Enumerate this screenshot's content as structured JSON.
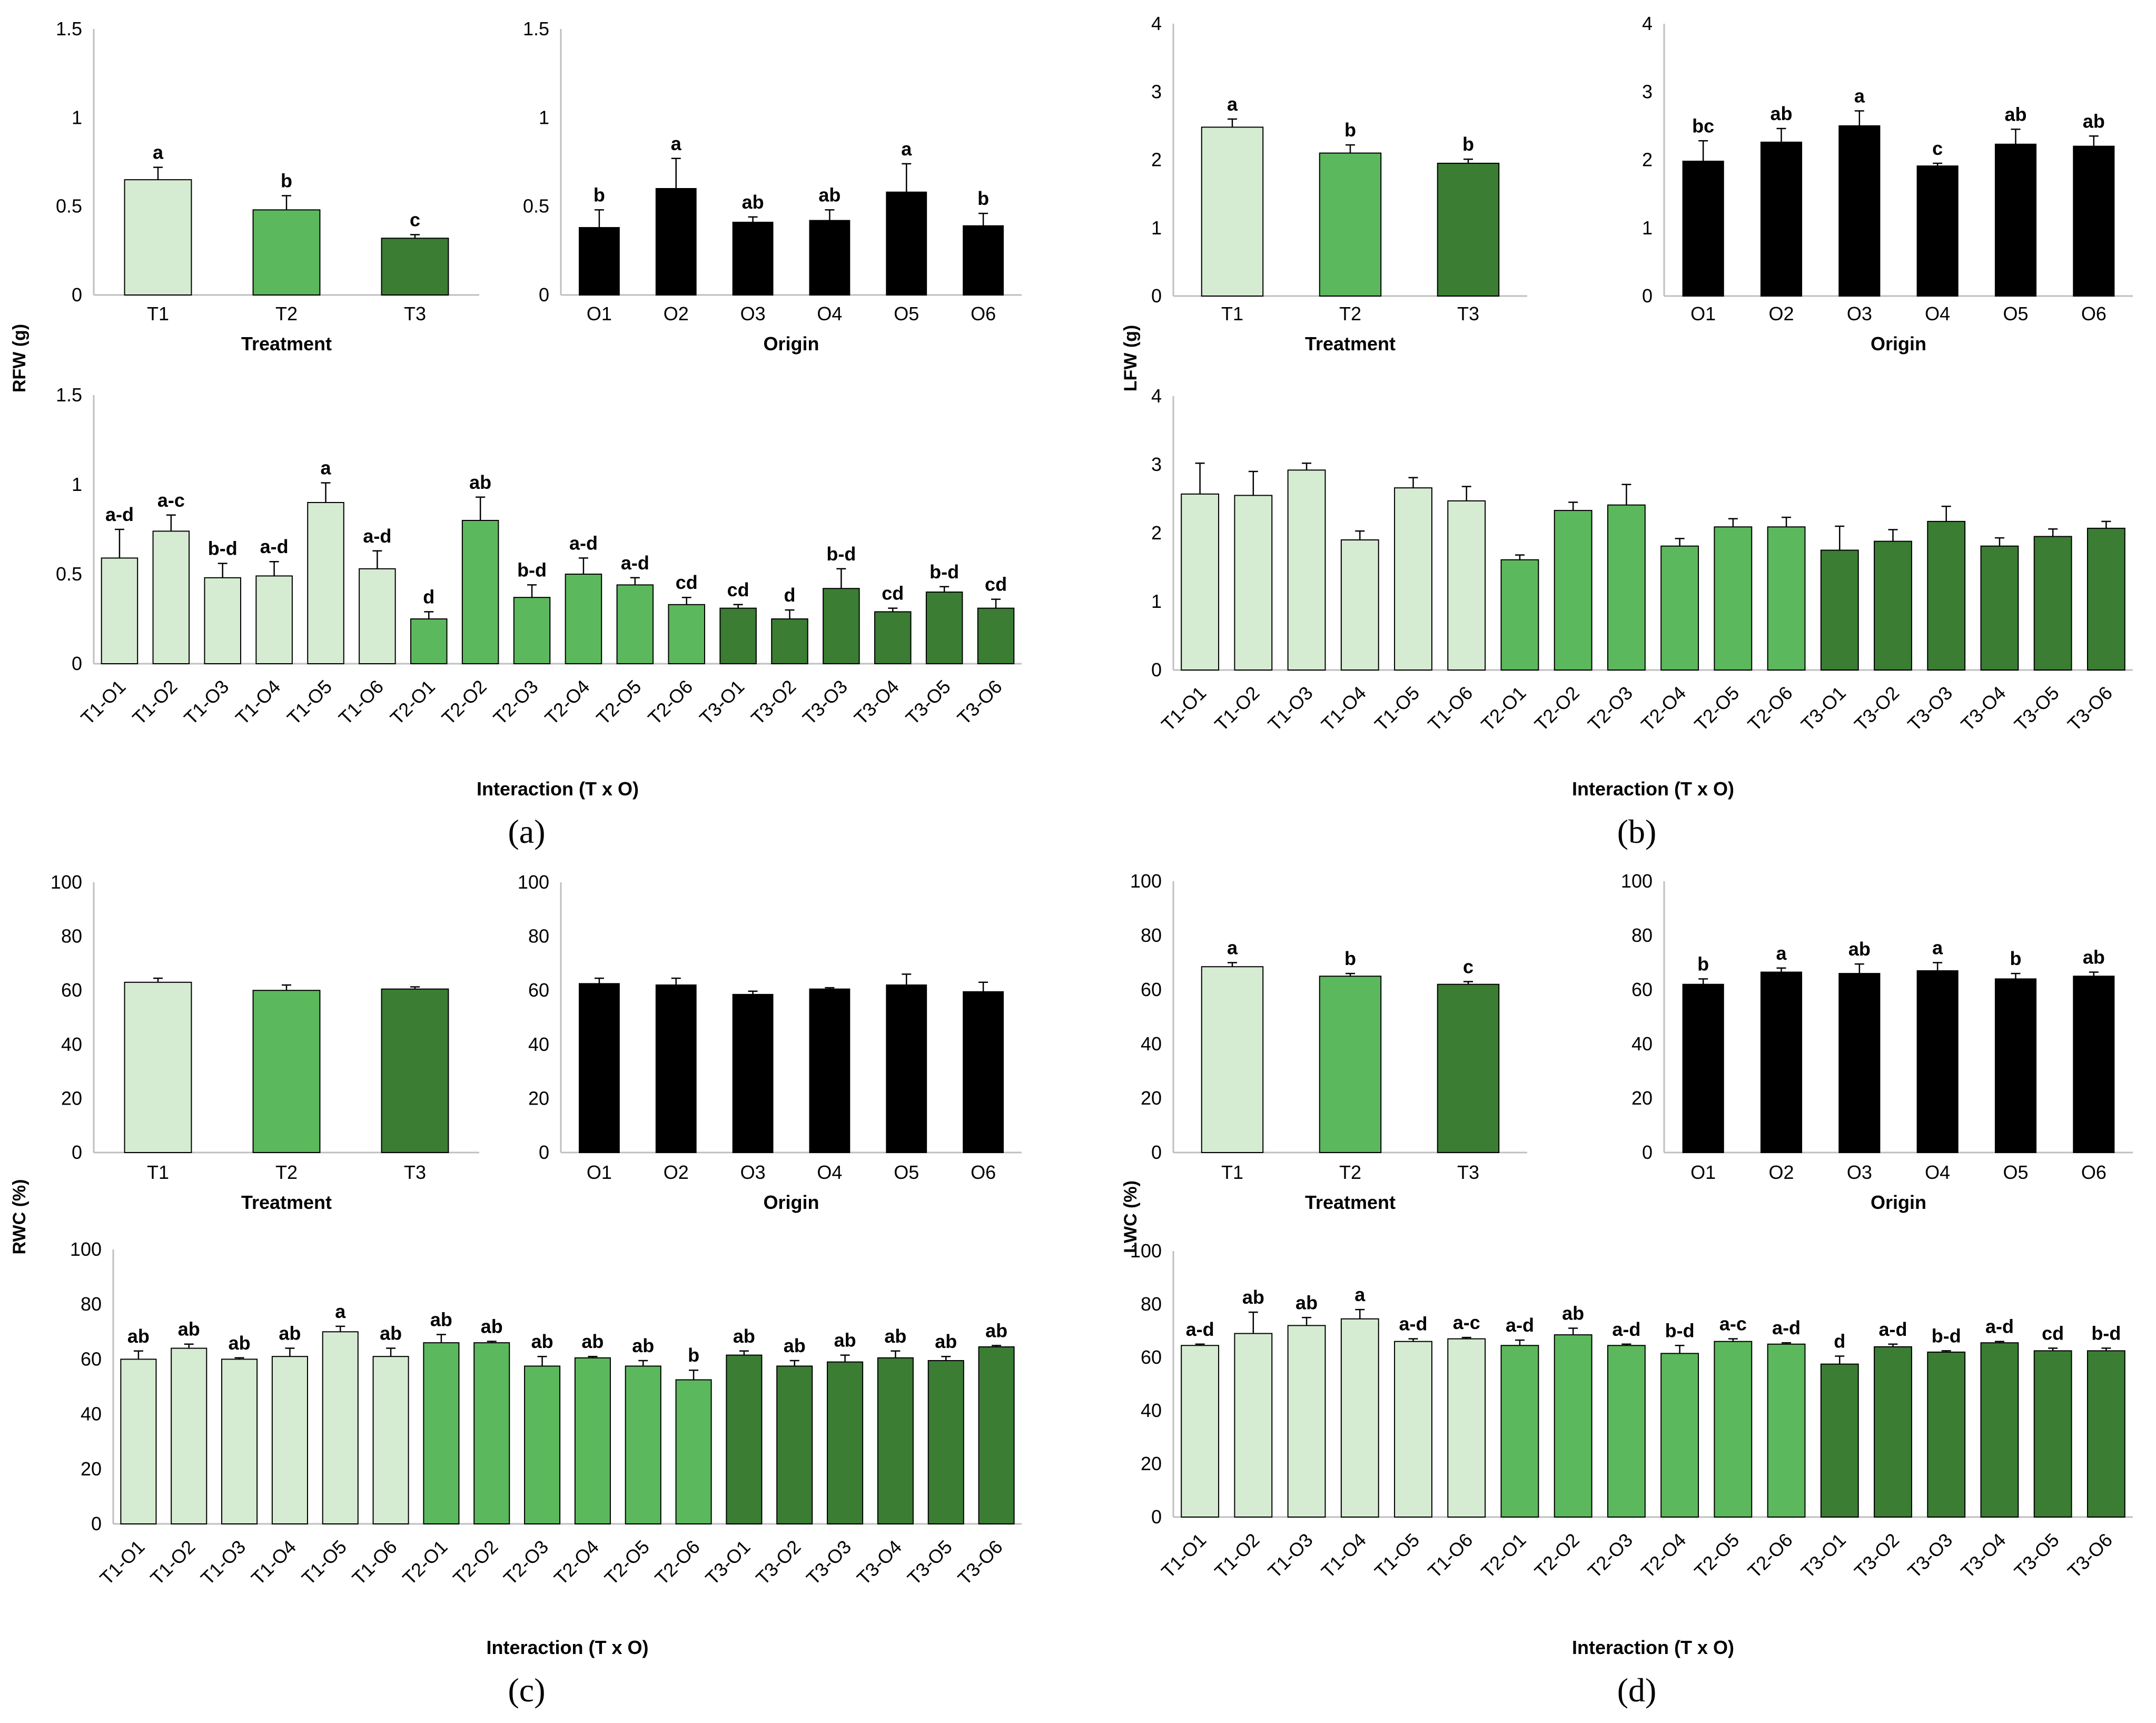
{
  "colors": {
    "T1": "#d6ecd2",
    "T2": "#5cb85c",
    "T3": "#3a7d33",
    "origin": "#000000"
  },
  "chart_data": [
    {
      "id": "a1",
      "type": "bar",
      "title": "",
      "xlabel": "Treatment",
      "ylabel": "",
      "ylim": [
        0,
        1.5
      ],
      "yticks": [
        "0",
        "0.5",
        "1",
        "1.5"
      ],
      "categories": [
        "T1",
        "T2",
        "T3"
      ],
      "values": [
        0.65,
        0.48,
        0.32
      ],
      "errors": [
        0.07,
        0.08,
        0.02
      ],
      "letters": [
        "a",
        "b",
        "c"
      ]
    },
    {
      "id": "a2",
      "type": "bar",
      "title": "",
      "xlabel": "Origin",
      "ylabel": "",
      "ylim": [
        0,
        1.5
      ],
      "yticks": [
        "0",
        "0.5",
        "1",
        "1.5"
      ],
      "categories": [
        "O1",
        "O2",
        "O3",
        "O4",
        "O5",
        "O6"
      ],
      "values": [
        0.38,
        0.6,
        0.41,
        0.42,
        0.58,
        0.39
      ],
      "errors": [
        0.1,
        0.17,
        0.03,
        0.06,
        0.16,
        0.07
      ],
      "letters": [
        "b",
        "a",
        "ab",
        "ab",
        "a",
        "b"
      ]
    },
    {
      "id": "a3",
      "type": "bar",
      "title": "",
      "xlabel": "Interaction (T x O)",
      "ylabel": "",
      "ylim": [
        0,
        1.5
      ],
      "yticks": [
        "0",
        "0.5",
        "1",
        "1.5"
      ],
      "categories": [
        "T1-O1",
        "T1-O2",
        "T1-O3",
        "T1-O4",
        "T1-O5",
        "T1-O6",
        "T2-O1",
        "T2-O2",
        "T2-O3",
        "T2-O4",
        "T2-O5",
        "T2-O6",
        "T3-O1",
        "T3-O2",
        "T3-O3",
        "T3-O4",
        "T3-O5",
        "T3-O6"
      ],
      "values": [
        0.59,
        0.74,
        0.48,
        0.49,
        0.9,
        0.53,
        0.25,
        0.8,
        0.37,
        0.5,
        0.44,
        0.33,
        0.31,
        0.25,
        0.42,
        0.29,
        0.4,
        0.31
      ],
      "errors": [
        0.16,
        0.09,
        0.08,
        0.08,
        0.11,
        0.1,
        0.04,
        0.13,
        0.07,
        0.09,
        0.04,
        0.04,
        0.02,
        0.05,
        0.11,
        0.02,
        0.03,
        0.05
      ],
      "letters": [
        "a-d",
        "a-c",
        "b-d",
        "a-d",
        "a",
        "a-d",
        "d",
        "ab",
        "b-d",
        "a-d",
        "a-d",
        "cd",
        "cd",
        "d",
        "b-d",
        "cd",
        "b-d",
        "cd"
      ]
    },
    {
      "id": "b1",
      "type": "bar",
      "title": "",
      "xlabel": "Treatment",
      "ylabel": "",
      "ylim": [
        0,
        4
      ],
      "yticks": [
        "0",
        "1",
        "2",
        "3",
        "4"
      ],
      "categories": [
        "T1",
        "T2",
        "T3"
      ],
      "values": [
        2.48,
        2.1,
        1.95
      ],
      "errors": [
        0.12,
        0.12,
        0.06
      ],
      "letters": [
        "a",
        "b",
        "b"
      ]
    },
    {
      "id": "b2",
      "type": "bar",
      "title": "",
      "xlabel": "Origin",
      "ylabel": "",
      "ylim": [
        0,
        4
      ],
      "yticks": [
        "0",
        "1",
        "2",
        "3",
        "4"
      ],
      "categories": [
        "O1",
        "O2",
        "O3",
        "O4",
        "O5",
        "O6"
      ],
      "values": [
        1.98,
        2.26,
        2.5,
        1.91,
        2.23,
        2.2
      ],
      "errors": [
        0.3,
        0.2,
        0.22,
        0.04,
        0.22,
        0.15
      ],
      "letters": [
        "bc",
        "ab",
        "a",
        "c",
        "ab",
        "ab"
      ]
    },
    {
      "id": "b3",
      "type": "bar",
      "title": "",
      "xlabel": "Interaction (T x O)",
      "ylabel": "",
      "ylim": [
        0,
        4
      ],
      "yticks": [
        "0",
        "1",
        "2",
        "3",
        "4"
      ],
      "categories": [
        "T1-O1",
        "T1-O2",
        "T1-O3",
        "T1-O4",
        "T1-O5",
        "T1-O6",
        "T2-O1",
        "T2-O2",
        "T2-O3",
        "T2-O4",
        "T2-O5",
        "T2-O6",
        "T3-O1",
        "T3-O2",
        "T3-O3",
        "T3-O4",
        "T3-O5",
        "T3-O6"
      ],
      "values": [
        2.57,
        2.55,
        2.92,
        1.9,
        2.66,
        2.47,
        1.61,
        2.33,
        2.41,
        1.81,
        2.09,
        2.09,
        1.75,
        1.88,
        2.17,
        1.81,
        1.95,
        2.07
      ],
      "errors": [
        0.45,
        0.35,
        0.1,
        0.13,
        0.15,
        0.21,
        0.07,
        0.12,
        0.3,
        0.11,
        0.12,
        0.14,
        0.35,
        0.17,
        0.22,
        0.12,
        0.11,
        0.1
      ],
      "letters": [
        "",
        "",
        "",
        "",
        "",
        "",
        "",
        "",
        "",
        "",
        "",
        "",
        "",
        "",
        "",
        "",
        "",
        ""
      ]
    },
    {
      "id": "c1",
      "type": "bar",
      "title": "",
      "xlabel": "Treatment",
      "ylabel": "",
      "ylim": [
        0,
        100
      ],
      "yticks": [
        "0",
        "20",
        "40",
        "60",
        "80",
        "100"
      ],
      "categories": [
        "T1",
        "T2",
        "T3"
      ],
      "values": [
        63,
        60,
        60.5
      ],
      "errors": [
        1.5,
        2,
        0.8
      ],
      "letters": [
        "",
        "",
        ""
      ]
    },
    {
      "id": "c2",
      "type": "bar",
      "title": "",
      "xlabel": "Origin",
      "ylabel": "",
      "ylim": [
        0,
        100
      ],
      "yticks": [
        "0",
        "20",
        "40",
        "60",
        "80",
        "100"
      ],
      "categories": [
        "O1",
        "O2",
        "O3",
        "O4",
        "O5",
        "O6"
      ],
      "values": [
        62.5,
        62,
        58.5,
        60.5,
        62,
        59.5
      ],
      "errors": [
        2,
        2.5,
        1.2,
        0.5,
        4,
        3.5
      ],
      "letters": [
        "",
        "",
        "",
        "",
        "",
        ""
      ]
    },
    {
      "id": "c3",
      "type": "bar",
      "title": "",
      "xlabel": "Interaction (T x O)",
      "ylabel": "",
      "ylim": [
        0,
        100
      ],
      "yticks": [
        "0",
        "20",
        "40",
        "60",
        "80",
        "100"
      ],
      "categories": [
        "T1-O1",
        "T1-O2",
        "T1-O3",
        "T1-O4",
        "T1-O5",
        "T1-O6",
        "T2-O1",
        "T2-O2",
        "T2-O3",
        "T2-O4",
        "T2-O5",
        "T2-O6",
        "T3-O1",
        "T3-O2",
        "T3-O3",
        "T3-O4",
        "T3-O5",
        "T3-O6"
      ],
      "values": [
        60,
        64,
        60,
        61,
        70,
        61,
        66,
        66,
        57.5,
        60.5,
        57.5,
        52.5,
        61.5,
        57.5,
        59,
        60.5,
        59.5,
        64.5
      ],
      "errors": [
        3,
        1.5,
        0.5,
        3,
        2,
        3,
        3,
        0.5,
        3.5,
        0.5,
        2,
        3.5,
        1.5,
        2,
        2.5,
        2.5,
        1.5,
        0.5
      ],
      "letters": [
        "ab",
        "ab",
        "ab",
        "ab",
        "a",
        "ab",
        "ab",
        "ab",
        "ab",
        "ab",
        "ab",
        "b",
        "ab",
        "ab",
        "ab",
        "ab",
        "ab",
        "ab"
      ]
    },
    {
      "id": "d1",
      "type": "bar",
      "title": "",
      "xlabel": "Treatment",
      "ylabel": "",
      "ylim": [
        0,
        100
      ],
      "yticks": [
        "0",
        "20",
        "40",
        "60",
        "80",
        "100"
      ],
      "categories": [
        "T1",
        "T2",
        "T3"
      ],
      "values": [
        68.5,
        65,
        62
      ],
      "errors": [
        1.5,
        1,
        1
      ],
      "letters": [
        "a",
        "b",
        "c"
      ]
    },
    {
      "id": "d2",
      "type": "bar",
      "title": "",
      "xlabel": "Origin",
      "ylabel": "",
      "ylim": [
        0,
        100
      ],
      "yticks": [
        "0",
        "20",
        "40",
        "60",
        "80",
        "100"
      ],
      "categories": [
        "O1",
        "O2",
        "O3",
        "O4",
        "O5",
        "O6"
      ],
      "values": [
        62,
        66.5,
        66,
        67,
        64,
        65
      ],
      "errors": [
        2,
        1.5,
        3.5,
        3,
        2,
        1.5
      ],
      "letters": [
        "b",
        "a",
        "ab",
        "a",
        "b",
        "ab"
      ]
    },
    {
      "id": "d3",
      "type": "bar",
      "title": "",
      "xlabel": "Interaction (T x O)",
      "ylabel": "",
      "ylim": [
        0,
        100
      ],
      "yticks": [
        "0",
        "20",
        "40",
        "60",
        "80",
        "100"
      ],
      "categories": [
        "T1-O1",
        "T1-O2",
        "T1-O3",
        "T1-O4",
        "T1-O5",
        "T1-O6",
        "T2-O1",
        "T2-O2",
        "T2-O3",
        "T2-O4",
        "T2-O5",
        "T2-O6",
        "T3-O1",
        "T3-O2",
        "T3-O3",
        "T3-O4",
        "T3-O5",
        "T3-O6"
      ],
      "values": [
        64.5,
        69,
        72,
        74.5,
        66,
        67,
        64.5,
        68.5,
        64.5,
        61.5,
        66,
        65,
        57.5,
        64,
        62,
        65.5,
        62.5,
        62.5
      ],
      "errors": [
        0.5,
        8,
        3,
        3.5,
        1,
        0.5,
        2,
        2.5,
        0.5,
        3,
        1,
        0.5,
        3,
        1,
        0.5,
        0.5,
        1,
        1
      ],
      "letters": [
        "a-d",
        "ab",
        "ab",
        "a",
        "a-d",
        "a-c",
        "a-d",
        "ab",
        "a-d",
        "b-d",
        "a-c",
        "a-d",
        "d",
        "a-d",
        "b-d",
        "a-d",
        "cd",
        "b-d"
      ]
    }
  ],
  "y_titles": {
    "a": "RFW (g)",
    "b": "LFW (g)",
    "c": "RWC (%)",
    "d": "LWC (%)"
  },
  "panel_labels": {
    "a": "(a)",
    "b": "(b)",
    "c": "(c)",
    "d": "(d)"
  }
}
